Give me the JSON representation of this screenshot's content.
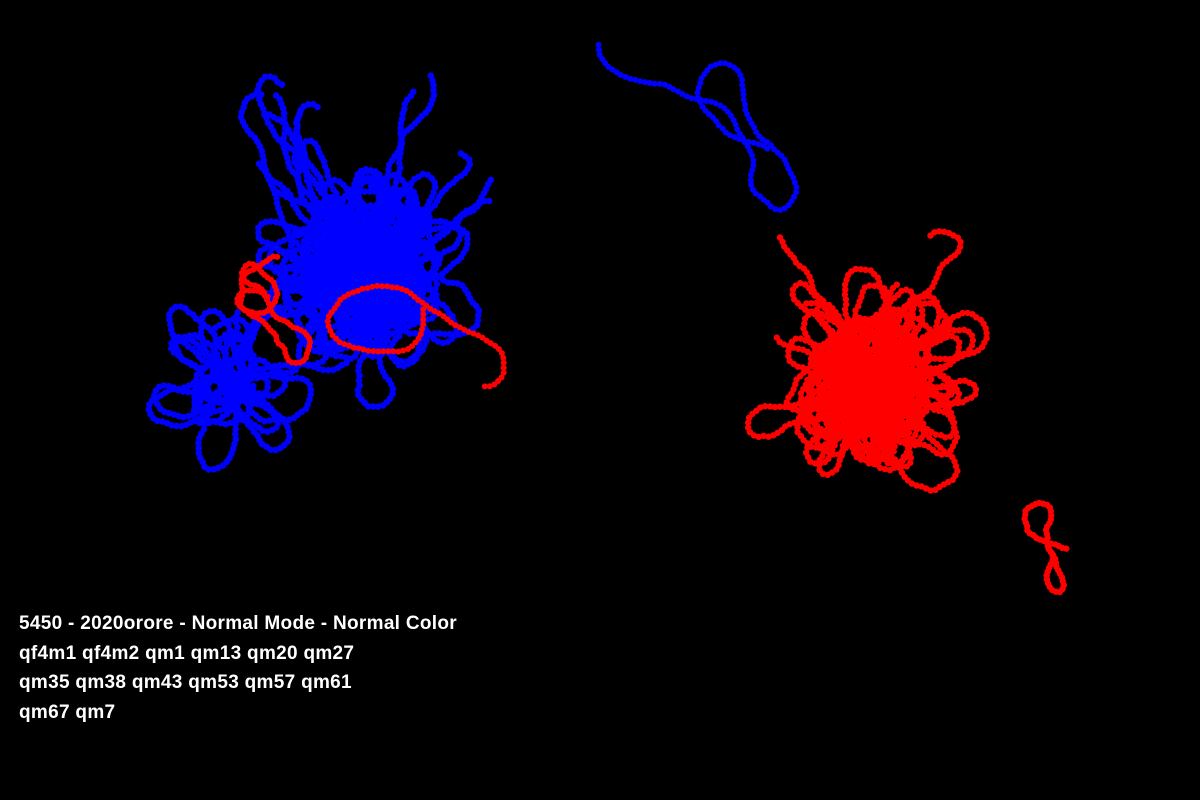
{
  "caption": {
    "line1": "5450 - 2020orore - Normal Mode - Normal Color",
    "line2": "qf4m1 qf4m2 qm1 qm13 qm20 qm27",
    "line3": "qm35 qm38 qm43 qm53 qm57 qm61",
    "line4": "qm67 qm7"
  },
  "colors": {
    "background": "#000000",
    "group_a": "#0000ff",
    "group_b": "#ff0000",
    "text": "#ffffff"
  }
}
